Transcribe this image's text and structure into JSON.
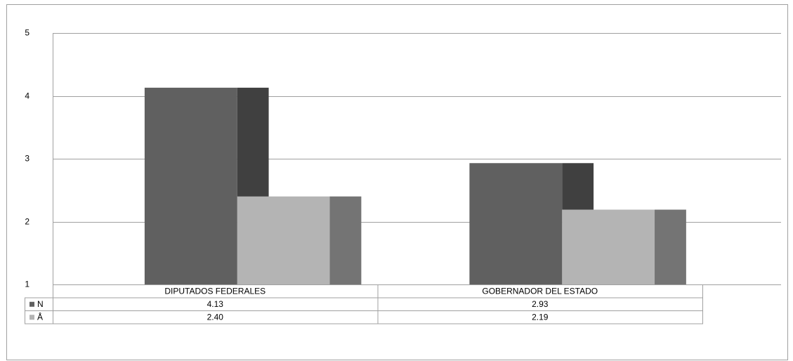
{
  "chart_data": {
    "type": "bar",
    "categories": [
      "DIPUTADOS FEDERALES",
      "GOBERNADOR DEL ESTADO"
    ],
    "series": [
      {
        "name": "N",
        "color": "#606060",
        "side_color": "#404040",
        "values": [
          4.13,
          2.93
        ],
        "value_labels": [
          "4.13",
          "2.93"
        ]
      },
      {
        "name": "Å",
        "color": "#b4b4b4",
        "side_color": "#747474",
        "values": [
          2.4,
          2.19
        ],
        "value_labels": [
          "2.40",
          "2.19"
        ]
      }
    ],
    "ylim": [
      1,
      5
    ],
    "yticks": [
      1,
      2,
      3,
      4,
      5
    ],
    "grid": true,
    "data_table": true
  }
}
